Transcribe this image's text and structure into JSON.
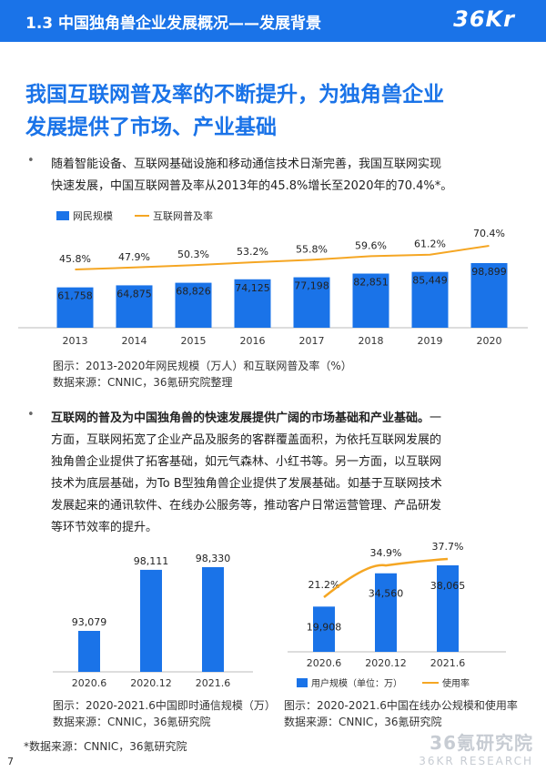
{
  "header": {
    "title": "1.3 中国独角兽企业发展概况——发展背景",
    "logo": "36Kr"
  },
  "headline": {
    "line1": "我国互联网普及率的不断提升，为独角兽企业",
    "line2": "发展提供了市场、产业基础"
  },
  "bullet1": {
    "dot": "•",
    "line1": "随着智能设备、互联网基础设施和移动通信技术日渐完善，我国互联网实现",
    "line2": "快速发展，中国互联网普及率从2013年的45.8%增长至2020年的70.4%*。"
  },
  "bullet2": {
    "dot": "•",
    "line1_bold": "互联网的普及为中国独角兽的快速发展提供广阔的市场基础和产业基础。",
    "line1_rest": "一",
    "line2": "方面，互联网拓宽了企业产品及服务的客群覆盖面积，为依托互联网发展的",
    "line3": "独角兽企业提供了拓客基础，如元气森林、小红书等。另一方面，以互联网",
    "line4": "技术为底层基础，为To B型独角兽企业提供了发展基础。如基于互联网技术",
    "line5": "发展起来的通讯软件、在线办公服务等，推动客户日常运营管理、产品研发",
    "line6": "等环节效率的提升。"
  },
  "chart1_caption": {
    "line1": "图示：2013-2020年网民规模（万人）和互联网普及率（%）",
    "line2": "数据来源：CNNIC，36氪研究院整理"
  },
  "chart2_caption": {
    "line1": "图示：2020-2021.6中国即时通信规模（万）",
    "line2": "数据来源：CNNIC，36氪研究院"
  },
  "chart3_caption": {
    "line1": "图示：2020-2021.6中国在线办公规模和使用率",
    "line2": "数据来源：CNNIC，36氪研究院"
  },
  "footnote": "*数据来源：CNNIC，36氪研究院",
  "page_number": "7",
  "watermark": {
    "main": "36氪研究院",
    "sub": "36KR RESEARCH"
  },
  "colors": {
    "bar": "#1a73e8",
    "line": "#f5a623",
    "header": "#1a73e8"
  },
  "chart_data": [
    {
      "type": "bar",
      "categories": [
        "2013",
        "2014",
        "2015",
        "2016",
        "2017",
        "2018",
        "2019",
        "2020"
      ],
      "series": [
        {
          "name": "网民规模",
          "type": "bar",
          "values": [
            61758,
            64875,
            68826,
            74125,
            77198,
            82851,
            85449,
            98899
          ],
          "labels": [
            "61,758",
            "64,875",
            "68,826",
            "74,125",
            "77,198",
            "82,851",
            "85,449",
            "98,899"
          ]
        },
        {
          "name": "互联网普及率",
          "type": "line",
          "values": [
            45.8,
            47.9,
            50.3,
            53.2,
            55.8,
            59.6,
            61.2,
            70.4
          ],
          "labels": [
            "45.8%",
            "47.9%",
            "50.3%",
            "53.2%",
            "55.8%",
            "59.6%",
            "61.2%",
            "70.4%"
          ]
        }
      ],
      "legend": "top-left"
    },
    {
      "type": "bar",
      "categories": [
        "2020.6",
        "2020.12",
        "2021.6"
      ],
      "series": [
        {
          "name": "",
          "values": [
            93079,
            98111,
            98330
          ],
          "labels": [
            "93,079",
            "98,111",
            "98,330"
          ]
        }
      ]
    },
    {
      "type": "bar",
      "categories": [
        "2020.6",
        "2020.12",
        "2021.6"
      ],
      "series": [
        {
          "name": "用户规模（单位：万）",
          "type": "bar",
          "values": [
            19908,
            34560,
            38065
          ],
          "labels": [
            "19,908",
            "34,560",
            "38,065"
          ]
        },
        {
          "name": "使用率",
          "type": "line",
          "values": [
            21.2,
            34.9,
            37.7
          ],
          "labels": [
            "21.2%",
            "34.9%",
            "37.7%"
          ]
        }
      ],
      "legend": "bottom"
    }
  ]
}
